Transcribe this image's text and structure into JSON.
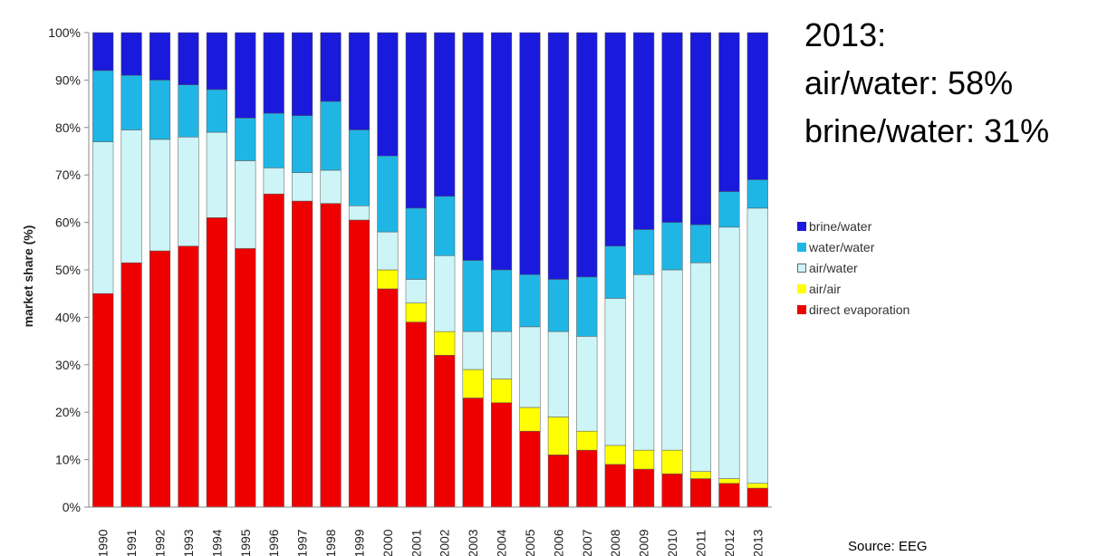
{
  "annotations": [
    "2013:",
    "air/water: 58%",
    "brine/water: 31%"
  ],
  "source": "Source: EEG",
  "chart_data": {
    "type": "bar",
    "stacked": true,
    "percent": true,
    "ylabel": "market share (%)",
    "xlabel": "",
    "ylim": [
      0,
      100
    ],
    "yticks": [
      "0%",
      "10%",
      "20%",
      "30%",
      "40%",
      "50%",
      "60%",
      "70%",
      "80%",
      "90%",
      "100%"
    ],
    "grid": false,
    "legend": "right",
    "categories": [
      "1990",
      "1991",
      "1992",
      "1993",
      "1994",
      "1995",
      "1996",
      "1997",
      "1998",
      "1999",
      "2000",
      "2001",
      "2002",
      "2003",
      "2004",
      "2005",
      "2006",
      "2007",
      "2008",
      "2009",
      "2010",
      "2011",
      "2012",
      "2013"
    ],
    "series": [
      {
        "name": "direct evaporation",
        "color": "#ee0000",
        "values": [
          45,
          51.5,
          54,
          55,
          61,
          54.5,
          66,
          64.5,
          64,
          60.5,
          46,
          39,
          32,
          23,
          22,
          16,
          11,
          12,
          9,
          8,
          7,
          6,
          5,
          4
        ]
      },
      {
        "name": "air/air",
        "color": "#ffff00",
        "values": [
          0,
          0,
          0,
          0,
          0,
          0,
          0,
          0,
          0,
          0,
          4,
          4,
          5,
          6,
          5,
          5,
          8,
          4,
          4,
          4,
          5,
          1.5,
          1,
          1
        ]
      },
      {
        "name": "air/water",
        "color": "#cdf4f6",
        "values": [
          32,
          28,
          23.5,
          23,
          18,
          18.5,
          5.5,
          6,
          7,
          3,
          8,
          5,
          16,
          8,
          10,
          17,
          18,
          20,
          31,
          37,
          38,
          44,
          53,
          58
        ]
      },
      {
        "name": "water/water",
        "color": "#1fb6e6",
        "values": [
          15,
          11.5,
          12.5,
          11,
          9,
          9,
          11.5,
          12,
          14.5,
          16,
          16,
          15,
          12.5,
          15,
          13,
          11,
          11,
          12.5,
          11,
          9.5,
          10,
          8,
          7.5,
          6
        ]
      },
      {
        "name": "brine/water",
        "color": "#1a1adc",
        "values": [
          8,
          9,
          10,
          11,
          12,
          18,
          17,
          17.5,
          14.5,
          20.5,
          26,
          37,
          34.5,
          48,
          50,
          51,
          52,
          51.5,
          45,
          41.5,
          40,
          40.5,
          33.5,
          31
        ]
      }
    ]
  }
}
